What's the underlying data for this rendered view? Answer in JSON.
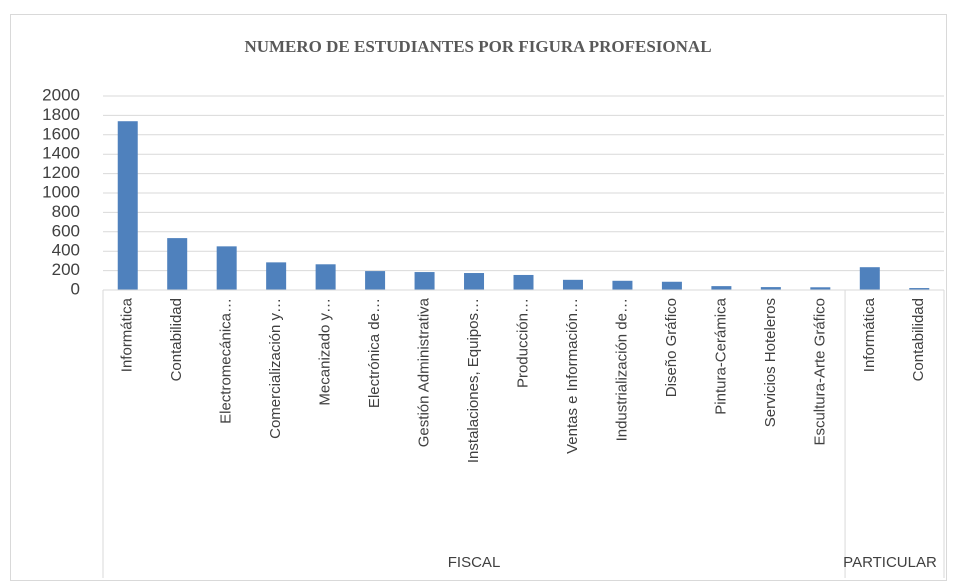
{
  "chart_data": {
    "type": "bar",
    "title": "NUMERO DE ESTUDIANTES POR FIGURA PROFESIONAL",
    "color": "#4f81bd",
    "groups": [
      {
        "name": "FISCAL",
        "categories": [
          "Informática",
          "Contabilidad",
          "Electromecánica…",
          "Comercialización y…",
          "Mecanizado y…",
          "Electrónica de…",
          "Gestión Administrativa",
          "Instalaciones, Equipos…",
          "Producción…",
          "Ventas e Información…",
          "Industrialización de…",
          "Diseño Gráfico",
          "Pintura-Cerámica",
          "Servicios Hoteleros",
          "Escultura-Arte Gráfico"
        ],
        "values": [
          1740,
          535,
          450,
          285,
          265,
          195,
          185,
          175,
          155,
          105,
          95,
          85,
          40,
          30,
          28
        ]
      },
      {
        "name": "PARTICULAR",
        "categories": [
          "Informática",
          "Contabilidad"
        ],
        "values": [
          235,
          20
        ]
      }
    ],
    "ylim": [
      0,
      2000
    ],
    "yticks": [
      0,
      200,
      400,
      600,
      800,
      1000,
      1200,
      1400,
      1600,
      1800,
      2000
    ],
    "grid": true
  }
}
